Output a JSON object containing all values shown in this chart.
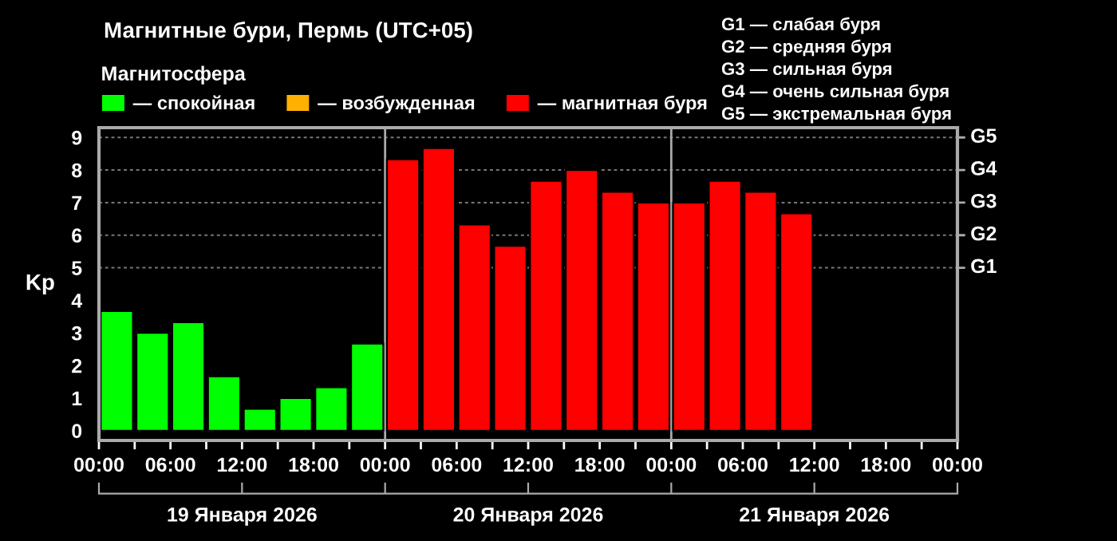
{
  "chart_data": {
    "type": "bar",
    "title": "Магнитные бури, Пермь (UTC+05)",
    "ylabel": "Kp",
    "legend_title": "Магнитосфера",
    "x": [
      "2026-01-19T01:30",
      "2026-01-19T04:30",
      "2026-01-19T07:30",
      "2026-01-19T10:30",
      "2026-01-19T13:30",
      "2026-01-19T16:30",
      "2026-01-19T19:30",
      "2026-01-19T22:30",
      "2026-01-20T01:30",
      "2026-01-20T04:30",
      "2026-01-20T07:30",
      "2026-01-20T10:30",
      "2026-01-20T13:30",
      "2026-01-20T16:30",
      "2026-01-20T19:30",
      "2026-01-20T22:30",
      "2026-01-21T01:30",
      "2026-01-21T04:30",
      "2026-01-21T07:30",
      "2026-01-21T10:30"
    ],
    "series": [
      {
        "name": "— спокойная",
        "color": "#00ff00",
        "values": [
          3.67,
          3.0,
          3.33,
          1.67,
          0.67,
          1.0,
          1.33,
          2.67,
          null,
          null,
          null,
          null,
          null,
          null,
          null,
          null,
          null,
          null,
          null,
          null
        ]
      },
      {
        "name": "— возбужденная",
        "color": "#ffb000",
        "values": [
          null,
          null,
          null,
          null,
          null,
          null,
          null,
          null,
          null,
          null,
          null,
          null,
          null,
          null,
          null,
          null,
          null,
          null,
          null,
          null
        ]
      },
      {
        "name": "— магнитная буря",
        "color": "#ff0000",
        "values": [
          null,
          null,
          null,
          null,
          null,
          null,
          null,
          null,
          8.33,
          8.67,
          6.33,
          5.67,
          7.67,
          8.0,
          7.33,
          7.0,
          7.0,
          7.67,
          7.33,
          6.67
        ]
      }
    ],
    "xlim": [
      "2026-01-19T00:00",
      "2026-01-22T00:00"
    ],
    "xticks": [
      {
        "value": "2026-01-19T00:00",
        "label": "00:00"
      },
      {
        "value": "2026-01-19T03:00",
        "label": null
      },
      {
        "value": "2026-01-19T06:00",
        "label": "06:00"
      },
      {
        "value": "2026-01-19T09:00",
        "label": null
      },
      {
        "value": "2026-01-19T12:00",
        "label": "12:00"
      },
      {
        "value": "2026-01-19T15:00",
        "label": null
      },
      {
        "value": "2026-01-19T18:00",
        "label": "18:00"
      },
      {
        "value": "2026-01-19T21:00",
        "label": null
      },
      {
        "value": "2026-01-20T00:00",
        "label": "00:00"
      },
      {
        "value": "2026-01-20T03:00",
        "label": null
      },
      {
        "value": "2026-01-20T06:00",
        "label": "06:00"
      },
      {
        "value": "2026-01-20T09:00",
        "label": null
      },
      {
        "value": "2026-01-20T12:00",
        "label": "12:00"
      },
      {
        "value": "2026-01-20T15:00",
        "label": null
      },
      {
        "value": "2026-01-20T18:00",
        "label": "18:00"
      },
      {
        "value": "2026-01-20T21:00",
        "label": null
      },
      {
        "value": "2026-01-21T00:00",
        "label": "00:00"
      },
      {
        "value": "2026-01-21T03:00",
        "label": null
      },
      {
        "value": "2026-01-21T06:00",
        "label": "06:00"
      },
      {
        "value": "2026-01-21T09:00",
        "label": null
      },
      {
        "value": "2026-01-21T12:00",
        "label": "12:00"
      },
      {
        "value": "2026-01-21T15:00",
        "label": null
      },
      {
        "value": "2026-01-21T18:00",
        "label": "18:00"
      },
      {
        "value": "2026-01-21T21:00",
        "label": null
      },
      {
        "value": "2026-01-22T00:00",
        "label": "00:00"
      }
    ],
    "x2lim": [
      "2026-01-19T00:00",
      "2026-01-22T00:00"
    ],
    "x2ticks": [
      {
        "value": "2026-01-19T00:00",
        "label": null
      },
      {
        "value": "2026-01-19T12:00",
        "label": "19 Января 2026"
      },
      {
        "value": "2026-01-20T00:00",
        "label": null
      },
      {
        "value": "2026-01-20T12:00",
        "label": "20 Января 2026"
      },
      {
        "value": "2026-01-21T00:00",
        "label": null
      },
      {
        "value": "2026-01-21T12:00",
        "label": "21 Января 2026"
      },
      {
        "value": "2026-01-22T00:00",
        "label": null
      }
    ],
    "ylim": [
      -0.3,
      9.3
    ],
    "yticks": [
      0,
      1,
      2,
      3,
      4,
      5,
      6,
      7,
      8,
      9
    ],
    "ref_lines": [
      {
        "axis": "x",
        "value": "2026-01-20T00:00",
        "color": "#aaaaaa"
      },
      {
        "axis": "x",
        "value": "2026-01-21T00:00",
        "color": "#aaaaaa"
      },
      {
        "axis": "y",
        "value": 5,
        "label": "G1",
        "color": "#777777",
        "line_style": "dotted"
      },
      {
        "axis": "y",
        "value": 6,
        "label": "G2",
        "color": "#777777",
        "line_style": "dotted"
      },
      {
        "axis": "y",
        "value": 7,
        "label": "G3",
        "color": "#777777",
        "line_style": "dotted"
      },
      {
        "axis": "y",
        "value": 8,
        "label": "G4",
        "color": "#777777",
        "line_style": "dotted"
      },
      {
        "axis": "y",
        "value": 9,
        "label": "G5",
        "color": "#777777",
        "line_style": "dotted"
      }
    ],
    "legend": "top left",
    "annotations": [
      "G1 — слабая буря",
      "G2 — средняя буря",
      "G3 — сильная буря",
      "G4 — очень сильная буря",
      "G5 — экстремальная буря"
    ]
  }
}
